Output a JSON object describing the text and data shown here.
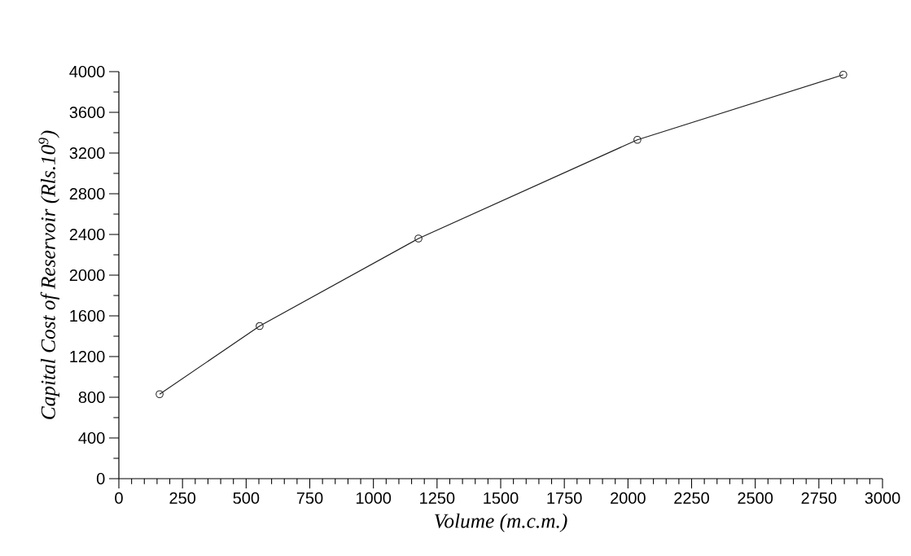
{
  "chart_data": {
    "type": "line",
    "xlabel": "Volume (m.c.m.)",
    "ylabel": "Capital Cost of Reservoir (Rls.10$^{9}$)",
    "x": [
      160,
      553,
      1177,
      2037,
      2846
    ],
    "series": [
      {
        "color": "#222222",
        "values": [
          830,
          1500,
          2360,
          3330,
          3970
        ]
      }
    ],
    "xlim": [
      0,
      3000
    ],
    "ylim": [
      0,
      4000
    ],
    "xticks": [
      0,
      250,
      500,
      750,
      1000,
      1250,
      1500,
      1750,
      2000,
      2250,
      2500,
      2750,
      3000
    ],
    "yticks": [
      0,
      400,
      800,
      1200,
      1600,
      2000,
      2400,
      2800,
      3200,
      3600,
      4000
    ],
    "grid": false,
    "marker": "circle",
    "line_style": "solid"
  }
}
